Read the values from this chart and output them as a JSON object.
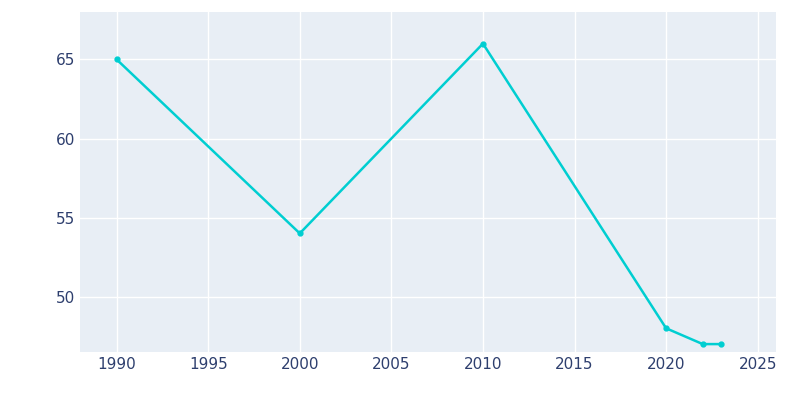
{
  "years": [
    1990,
    2000,
    2010,
    2020,
    2022,
    2023
  ],
  "population": [
    65,
    54,
    66,
    48,
    47,
    47
  ],
  "line_color": "#00CED1",
  "marker": "o",
  "marker_size": 3.5,
  "line_width": 1.8,
  "background_color": "#e8eef5",
  "plot_bg_color": "#e8eef5",
  "fig_bg_color": "#ffffff",
  "grid_color": "#ffffff",
  "xlim": [
    1988,
    2026
  ],
  "ylim": [
    46.5,
    68
  ],
  "xticks": [
    1990,
    1995,
    2000,
    2005,
    2010,
    2015,
    2020,
    2025
  ],
  "yticks": [
    50,
    55,
    60,
    65
  ],
  "tick_label_color": "#2e3f6e",
  "tick_fontsize": 11
}
